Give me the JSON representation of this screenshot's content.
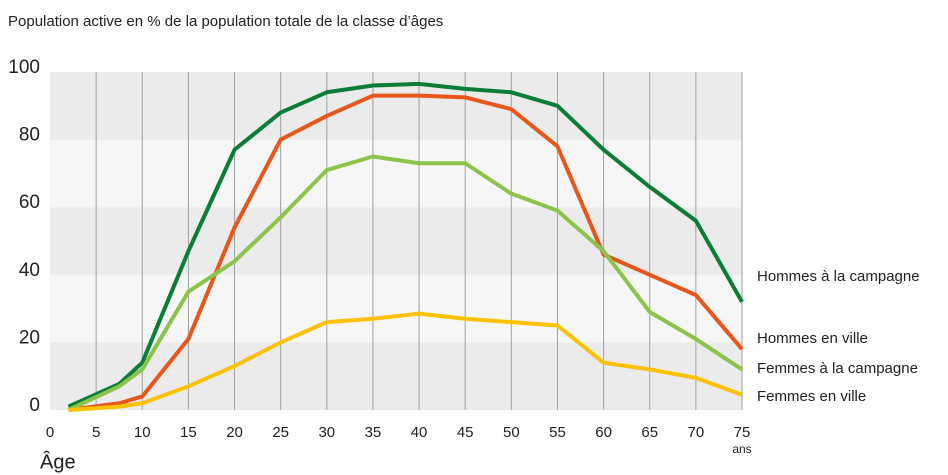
{
  "chart_data": {
    "type": "line",
    "title": "Population active en % de la population totale de la classe d’âges",
    "x_label": "Âge",
    "x_unit": "ans",
    "x": [
      2,
      7.5,
      10,
      15,
      20,
      25,
      30,
      35,
      40,
      45,
      50,
      55,
      60,
      65,
      70,
      75
    ],
    "series": [
      {
        "name": "Hommes à la campagne",
        "color": "#0a7d36",
        "values": [
          1,
          7.7,
          14,
          47,
          77,
          88,
          94,
          96,
          96.5,
          95,
          94,
          90,
          77,
          66,
          56,
          32
        ]
      },
      {
        "name": "Hommes en ville",
        "color": "#e8561b",
        "values": [
          0,
          2,
          4,
          21,
          54,
          80,
          87,
          93,
          93,
          92.5,
          89,
          78,
          46,
          40,
          34,
          18
        ]
      },
      {
        "name": "Femmes à la campagne",
        "color": "#8cc34b",
        "values": [
          0,
          7,
          12,
          35,
          44,
          57,
          71,
          75,
          73,
          73,
          64,
          59,
          47,
          29,
          21,
          12
        ]
      },
      {
        "name": "Femmes en ville",
        "color": "#fcc200",
        "values": [
          0,
          1,
          2,
          7,
          13,
          20,
          26,
          27,
          28.5,
          27,
          26,
          25,
          14,
          12,
          9.5,
          4.5
        ]
      }
    ],
    "xlim": [
      0,
      75
    ],
    "ylim": [
      0,
      100
    ],
    "xticks": [
      0,
      5,
      10,
      15,
      20,
      25,
      30,
      35,
      40,
      45,
      50,
      55,
      60,
      65,
      70,
      75
    ],
    "yticks": [
      0,
      20,
      40,
      60,
      80,
      100
    ],
    "grid": true,
    "grid_band_colors": [
      "#ebebeb",
      "#f6f6f6"
    ],
    "grid_line_color": "#a0a0a0"
  }
}
